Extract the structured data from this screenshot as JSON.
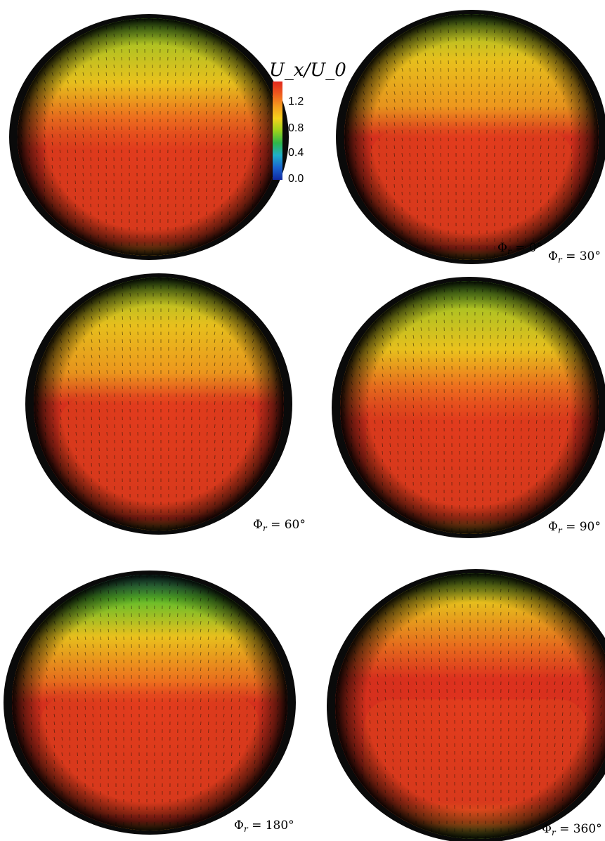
{
  "colorbar": {
    "title": "U_x/U_0",
    "ticks": [
      "1.2",
      "0.8",
      "0.4",
      "0.0"
    ],
    "stops": [
      "#e0281e",
      "#ee5a1e",
      "#f59a1e",
      "#f6d21c",
      "#9bd21c",
      "#2fb84a",
      "#1fb0c8",
      "#1a64d0",
      "#1028a0"
    ]
  },
  "panels": [
    {
      "label": "Φr = 0°",
      "label_parts": [
        "Φ",
        "r",
        " = 0°"
      ],
      "style": "a"
    },
    {
      "label": "Φr = 30°",
      "label_parts": [
        "Φ",
        "r",
        " = 30°"
      ],
      "style": "b"
    },
    {
      "label": "Φr = 60°",
      "label_parts": [
        "Φ",
        "r",
        " = 60°"
      ],
      "style": "b"
    },
    {
      "label": "Φr = 90°",
      "label_parts": [
        "Φ",
        "r",
        " = 90°"
      ],
      "style": "a"
    },
    {
      "label": "Φr = 180°",
      "label_parts": [
        "Φ",
        "r",
        " = 180°"
      ],
      "style": "c"
    },
    {
      "label": "Φr = 360°",
      "label_parts": [
        "Φ",
        "r",
        " = 360°"
      ],
      "style": "d"
    }
  ],
  "colors": {
    "rim": "#0a0a0a",
    "red": "#e0321e",
    "orange": "#f0701e",
    "yellow": "#f2c81e",
    "green": "#5fc82e",
    "arrow": "#1a1208"
  }
}
